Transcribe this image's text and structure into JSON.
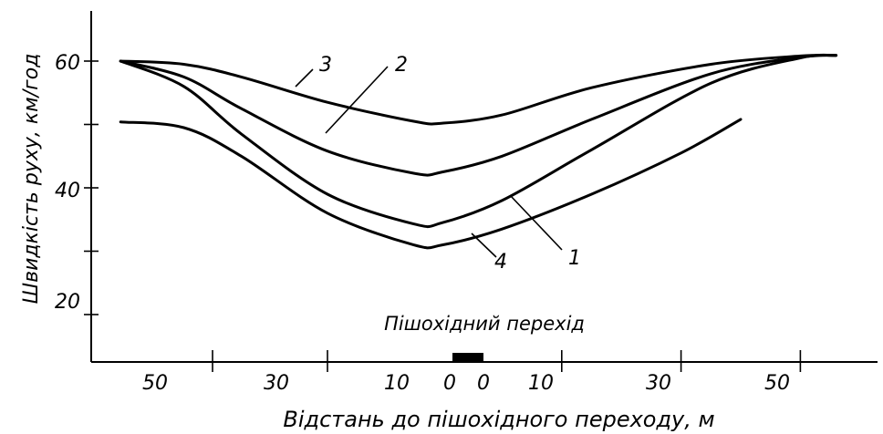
{
  "chart_data": {
    "type": "line",
    "title": "",
    "xlabel": "Відстань до пішохідного переходу, м",
    "ylabel": "Швидкість руху, км/год",
    "annotation": "Пішохідний перехід",
    "ylim": [
      12,
      80
    ],
    "ytick_labels": [
      "60",
      "40",
      "20"
    ],
    "yticks": [
      60,
      50,
      40,
      30,
      20
    ],
    "xtick_labels": [
      "50",
      "30",
      "10",
      "0",
      "0",
      "10",
      "30",
      "50"
    ],
    "xlim": [
      -56,
      66
    ],
    "curve_labels": [
      "3",
      "2",
      "1",
      "4"
    ],
    "series": [
      {
        "name": "3",
        "x": [
          -56,
          -45,
          -35,
          -20,
          -5,
          0,
          10,
          25,
          45,
          60,
          66
        ],
        "y": [
          60.0,
          59.5,
          57.5,
          53.5,
          50.5,
          50.2,
          51.5,
          55.8,
          59.5,
          60.8,
          60.9
        ]
      },
      {
        "name": "2",
        "x": [
          -56,
          -45,
          -35,
          -20,
          -5,
          0,
          10,
          25,
          45,
          60,
          66
        ],
        "y": [
          60.0,
          57.5,
          52.5,
          45.8,
          42.3,
          42.5,
          45.0,
          50.8,
          58.0,
          60.6,
          60.9
        ]
      },
      {
        "name": "1",
        "x": [
          -56,
          -45,
          -35,
          -20,
          -5,
          0,
          10,
          25,
          45,
          60,
          66
        ],
        "y": [
          60.0,
          56.0,
          48.5,
          39.0,
          34.3,
          34.5,
          38.0,
          46.0,
          56.5,
          60.5,
          60.9
        ]
      },
      {
        "name": "4",
        "x": [
          -56,
          -45,
          -35,
          -20,
          -5,
          0,
          10,
          25,
          40,
          50
        ],
        "y": [
          50.4,
          49.5,
          45.0,
          36.0,
          31.0,
          31.0,
          33.5,
          39.0,
          45.5,
          50.8
        ]
      }
    ]
  }
}
